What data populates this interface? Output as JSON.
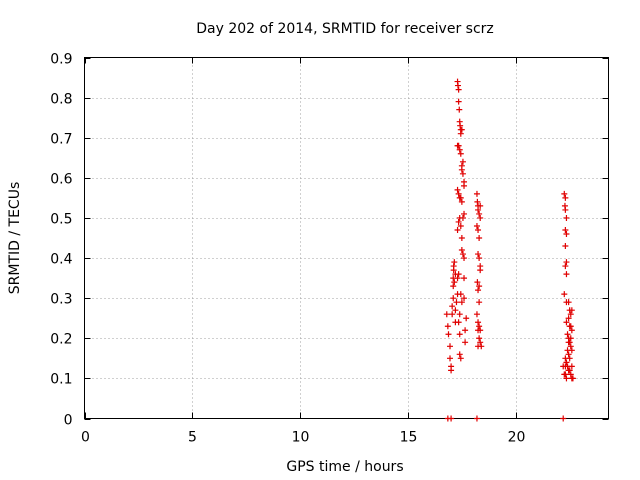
{
  "chart_data": {
    "type": "scatter",
    "title": "Day 202 of 2014, SRMTID for receiver scrz",
    "xlabel": "GPS time / hours",
    "ylabel": "SRMTID / TECUs",
    "xlim": [
      0,
      24.3
    ],
    "ylim": [
      0,
      0.9
    ],
    "x_ticks": [
      0,
      5,
      10,
      15,
      20
    ],
    "y_ticks": [
      0,
      0.1,
      0.2,
      0.3,
      0.4,
      0.5,
      0.6,
      0.7,
      0.8,
      0.9
    ],
    "x_tick_labels": [
      "0",
      "5",
      "10",
      "15",
      "20"
    ],
    "y_tick_labels": [
      "0",
      "0.1",
      "0.2",
      "0.3",
      "0.4",
      "0.5",
      "0.6",
      "0.7",
      "0.8",
      "0.9"
    ],
    "grid": true,
    "marker": "plus",
    "color": "#e00000",
    "series": [
      {
        "name": "SRMTID",
        "points": [
          [
            16.85,
            0
          ],
          [
            17.0,
            0
          ],
          [
            18.2,
            0
          ],
          [
            22.2,
            0
          ],
          [
            16.8,
            0.26
          ],
          [
            16.85,
            0.23
          ],
          [
            16.88,
            0.21
          ],
          [
            16.95,
            0.18
          ],
          [
            16.95,
            0.15
          ],
          [
            17.0,
            0.13
          ],
          [
            17.0,
            0.12
          ],
          [
            17.05,
            0.26
          ],
          [
            17.05,
            0.28
          ],
          [
            17.1,
            0.3
          ],
          [
            17.1,
            0.33
          ],
          [
            17.1,
            0.35
          ],
          [
            17.12,
            0.37
          ],
          [
            17.12,
            0.38
          ],
          [
            17.15,
            0.39
          ],
          [
            17.15,
            0.34
          ],
          [
            17.2,
            0.36
          ],
          [
            17.2,
            0.27
          ],
          [
            17.2,
            0.24
          ],
          [
            17.25,
            0.29
          ],
          [
            17.3,
            0.31
          ],
          [
            17.3,
            0.35
          ],
          [
            17.35,
            0.36
          ],
          [
            17.35,
            0.24
          ],
          [
            17.4,
            0.26
          ],
          [
            17.4,
            0.21
          ],
          [
            17.4,
            0.16
          ],
          [
            17.45,
            0.15
          ],
          [
            17.45,
            0.31
          ],
          [
            17.5,
            0.29
          ],
          [
            17.5,
            0.42
          ],
          [
            17.55,
            0.41
          ],
          [
            17.6,
            0.35
          ],
          [
            17.6,
            0.4
          ],
          [
            17.6,
            0.3
          ],
          [
            17.65,
            0.22
          ],
          [
            17.65,
            0.19
          ],
          [
            17.7,
            0.25
          ],
          [
            17.3,
            0.84
          ],
          [
            17.32,
            0.83
          ],
          [
            17.35,
            0.82
          ],
          [
            17.35,
            0.79
          ],
          [
            17.38,
            0.77
          ],
          [
            17.4,
            0.74
          ],
          [
            17.42,
            0.73
          ],
          [
            17.45,
            0.72
          ],
          [
            17.45,
            0.71
          ],
          [
            17.5,
            0.72
          ],
          [
            17.3,
            0.68
          ],
          [
            17.35,
            0.68
          ],
          [
            17.4,
            0.67
          ],
          [
            17.45,
            0.66
          ],
          [
            17.5,
            0.63
          ],
          [
            17.5,
            0.62
          ],
          [
            17.55,
            0.61
          ],
          [
            17.55,
            0.64
          ],
          [
            17.6,
            0.59
          ],
          [
            17.6,
            0.58
          ],
          [
            17.3,
            0.57
          ],
          [
            17.35,
            0.56
          ],
          [
            17.4,
            0.55
          ],
          [
            17.45,
            0.55
          ],
          [
            17.5,
            0.54
          ],
          [
            17.55,
            0.5
          ],
          [
            17.6,
            0.51
          ],
          [
            17.3,
            0.47
          ],
          [
            17.35,
            0.49
          ],
          [
            17.4,
            0.5
          ],
          [
            17.45,
            0.48
          ],
          [
            17.5,
            0.45
          ],
          [
            18.2,
            0.56
          ],
          [
            18.22,
            0.54
          ],
          [
            18.25,
            0.53
          ],
          [
            18.25,
            0.52
          ],
          [
            18.3,
            0.51
          ],
          [
            18.35,
            0.53
          ],
          [
            18.35,
            0.5
          ],
          [
            18.2,
            0.48
          ],
          [
            18.25,
            0.47
          ],
          [
            18.3,
            0.45
          ],
          [
            18.25,
            0.41
          ],
          [
            18.3,
            0.4
          ],
          [
            18.35,
            0.38
          ],
          [
            18.35,
            0.37
          ],
          [
            18.22,
            0.34
          ],
          [
            18.25,
            0.32
          ],
          [
            18.3,
            0.33
          ],
          [
            18.3,
            0.29
          ],
          [
            18.2,
            0.26
          ],
          [
            18.25,
            0.24
          ],
          [
            18.3,
            0.23
          ],
          [
            18.35,
            0.22
          ],
          [
            18.25,
            0.22
          ],
          [
            18.3,
            0.2
          ],
          [
            18.35,
            0.19
          ],
          [
            18.25,
            0.18
          ],
          [
            18.4,
            0.18
          ],
          [
            22.25,
            0.56
          ],
          [
            22.3,
            0.55
          ],
          [
            22.3,
            0.52
          ],
          [
            22.28,
            0.53
          ],
          [
            22.35,
            0.5
          ],
          [
            22.3,
            0.47
          ],
          [
            22.35,
            0.46
          ],
          [
            22.3,
            0.43
          ],
          [
            22.35,
            0.39
          ],
          [
            22.3,
            0.38
          ],
          [
            22.35,
            0.36
          ],
          [
            22.25,
            0.31
          ],
          [
            22.35,
            0.29
          ],
          [
            22.45,
            0.29
          ],
          [
            22.5,
            0.27
          ],
          [
            22.55,
            0.26
          ],
          [
            22.6,
            0.27
          ],
          [
            22.45,
            0.25
          ],
          [
            22.5,
            0.23
          ],
          [
            22.55,
            0.23
          ],
          [
            22.6,
            0.22
          ],
          [
            22.35,
            0.24
          ],
          [
            22.4,
            0.21
          ],
          [
            22.45,
            0.2
          ],
          [
            22.5,
            0.19
          ],
          [
            22.55,
            0.18
          ],
          [
            22.6,
            0.17
          ],
          [
            22.4,
            0.17
          ],
          [
            22.45,
            0.16
          ],
          [
            22.5,
            0.15
          ],
          [
            22.3,
            0.15
          ],
          [
            22.35,
            0.14
          ],
          [
            22.3,
            0.13
          ],
          [
            22.4,
            0.13
          ],
          [
            22.45,
            0.12
          ],
          [
            22.5,
            0.12
          ],
          [
            22.55,
            0.11
          ],
          [
            22.3,
            0.11
          ],
          [
            22.35,
            0.1
          ],
          [
            22.6,
            0.1
          ],
          [
            22.65,
            0.1
          ],
          [
            22.45,
            0.19
          ],
          [
            22.55,
            0.2
          ],
          [
            22.6,
            0.13
          ],
          [
            22.2,
            0.13
          ],
          [
            22.25,
            0.11
          ]
        ]
      }
    ]
  }
}
